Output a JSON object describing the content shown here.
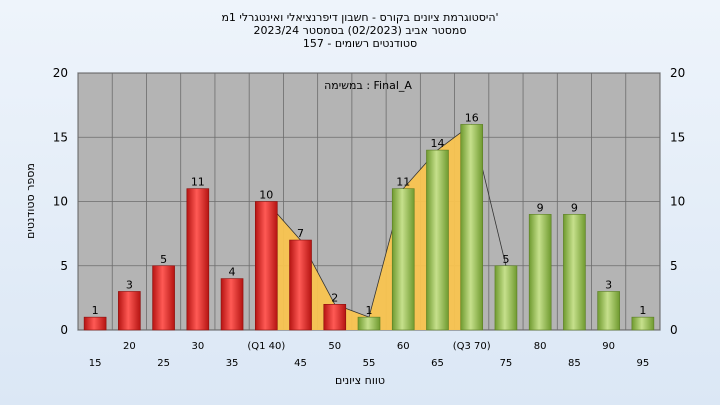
{
  "chart_data": {
    "type": "bar",
    "title_lines": [
      "היסטוגרמת ציונים בקורס - חשבון דיפרנציאלי ואינטגרלי 1מ'",
      "2023/24 סמסטר אביב (02/2023) בסמסטר",
      "סטודנטים רשומים - 157"
    ],
    "annotation": "במשימה : Final_A",
    "xlabel": "טווח ציונים",
    "ylabel": "מספר סטודנטים",
    "ylim": [
      0,
      20
    ],
    "yticks": [
      0,
      5,
      10,
      15,
      20
    ],
    "grid": true,
    "categories": [
      "15",
      "20",
      "25",
      "30",
      "35",
      "(Q1 40)",
      "45",
      "50",
      "55",
      "60",
      "65",
      "(Q3 70)",
      "75",
      "80",
      "85",
      "90",
      "95"
    ],
    "values": [
      1,
      3,
      5,
      11,
      4,
      10,
      7,
      2,
      1,
      11,
      14,
      16,
      5,
      9,
      9,
      3,
      1
    ],
    "series_colors": {
      "failing": "#e8302e",
      "passing": "#9cc25a",
      "area": "#f9c450"
    },
    "passing_from_index": 8,
    "area_series": {
      "start_index": 5,
      "end_index": 11
    }
  }
}
